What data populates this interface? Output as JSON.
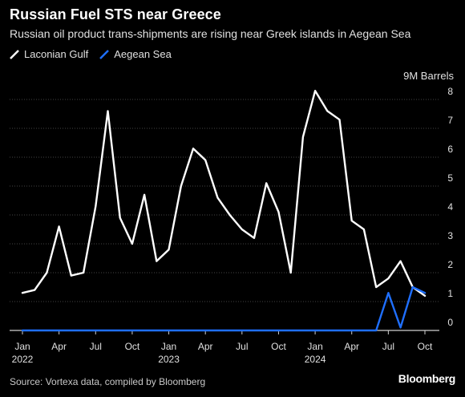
{
  "header": {
    "title": "Russian Fuel STS near Greece",
    "subtitle": "Russian oil product trans-shipments are rising near Greek islands in Aegean Sea"
  },
  "legend": [
    {
      "label": "Laconian Gulf",
      "color": "#ffffff"
    },
    {
      "label": "Aegean Sea",
      "color": "#1f6fff"
    }
  ],
  "footer": {
    "source": "Source: Vortexa data, compiled by Bloomberg",
    "logo": "Bloomberg"
  },
  "chart_data": {
    "type": "line",
    "title": "Russian Fuel STS near Greece",
    "subtitle": "Russian oil product trans-shipments are rising near Greek islands in Aegean Sea",
    "ylabel": "9M Barrels",
    "ylim": [
      0,
      8
    ],
    "yticks": [
      "0",
      "1",
      "2",
      "3",
      "4",
      "5",
      "6",
      "7",
      "8"
    ],
    "x": [
      "2022-01",
      "2022-02",
      "2022-03",
      "2022-04",
      "2022-05",
      "2022-06",
      "2022-07",
      "2022-08",
      "2022-09",
      "2022-10",
      "2022-11",
      "2022-12",
      "2023-01",
      "2023-02",
      "2023-03",
      "2023-04",
      "2023-05",
      "2023-06",
      "2023-07",
      "2023-08",
      "2023-09",
      "2023-10",
      "2023-11",
      "2023-12",
      "2024-01",
      "2024-02",
      "2024-03",
      "2024-04",
      "2024-05",
      "2024-06",
      "2024-07",
      "2024-08",
      "2024-09",
      "2024-10"
    ],
    "xticks": [
      {
        "x": "2022-01",
        "label": "Jan",
        "year": "2022"
      },
      {
        "x": "2022-04",
        "label": "Apr",
        "year": ""
      },
      {
        "x": "2022-07",
        "label": "Jul",
        "year": ""
      },
      {
        "x": "2022-10",
        "label": "Oct",
        "year": ""
      },
      {
        "x": "2023-01",
        "label": "Jan",
        "year": "2023"
      },
      {
        "x": "2023-04",
        "label": "Apr",
        "year": ""
      },
      {
        "x": "2023-07",
        "label": "Jul",
        "year": ""
      },
      {
        "x": "2023-10",
        "label": "Oct",
        "year": ""
      },
      {
        "x": "2024-01",
        "label": "Jan",
        "year": "2024"
      },
      {
        "x": "2024-04",
        "label": "Apr",
        "year": ""
      },
      {
        "x": "2024-07",
        "label": "Jul",
        "year": ""
      },
      {
        "x": "2024-10",
        "label": "Oct",
        "year": ""
      }
    ],
    "series": [
      {
        "name": "Laconian Gulf",
        "color": "#ffffff",
        "values": [
          1.3,
          1.4,
          2.0,
          3.6,
          1.9,
          2.0,
          4.3,
          7.6,
          3.9,
          3.0,
          4.7,
          2.4,
          2.8,
          5.0,
          6.3,
          5.9,
          4.6,
          4.0,
          3.5,
          3.2,
          5.1,
          4.1,
          2.0,
          6.7,
          8.3,
          7.6,
          7.3,
          3.8,
          3.5,
          1.5,
          1.8,
          2.4,
          1.5,
          1.2
        ]
      },
      {
        "name": "Aegean Sea",
        "color": "#1f6fff",
        "values": [
          0,
          0,
          0,
          0,
          0,
          0,
          0,
          0,
          0,
          0,
          0,
          0,
          0,
          0,
          0,
          0,
          0,
          0,
          0,
          0,
          0,
          0,
          0,
          0,
          0,
          0,
          0,
          0,
          0,
          0,
          1.3,
          0.1,
          1.5,
          1.3
        ]
      }
    ],
    "grid": true,
    "legend_position": "top-left"
  }
}
